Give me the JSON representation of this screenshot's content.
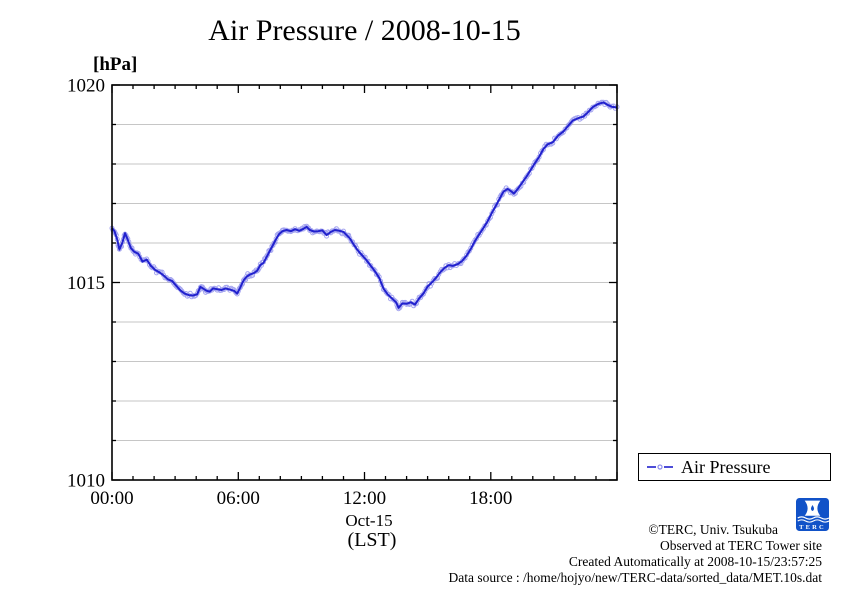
{
  "chart_data": {
    "type": "line",
    "title": "Air Pressure / 2008-10-15",
    "unit_label": "[hPa]",
    "xlabel_date": "Oct-15",
    "xlabel_tz": "(LST)",
    "grid": "horizontal",
    "grid_color": "#c6c6c6",
    "legend_position": "bottom-right-outside",
    "xaxis": {
      "min": 0,
      "max": 24,
      "minor_step_hours": 1,
      "major_step_hours": 6,
      "major_ticks": [
        {
          "hour": 0,
          "label": "00:00"
        },
        {
          "hour": 6,
          "label": "06:00"
        },
        {
          "hour": 12,
          "label": "12:00"
        },
        {
          "hour": 18,
          "label": "18:00"
        }
      ]
    },
    "yaxis": {
      "min": 1010,
      "max": 1020,
      "minor_step": 1,
      "major_ticks": [
        {
          "value": 1010,
          "label": "1010"
        },
        {
          "value": 1015,
          "label": "1015"
        },
        {
          "value": 1020,
          "label": "1020"
        }
      ],
      "grid_values": [
        1011,
        1012,
        1013,
        1014,
        1015,
        1016,
        1017,
        1018,
        1019
      ]
    },
    "series": [
      {
        "name": "Air Pressure",
        "color": "#2121cd",
        "marker_color": "#8d8dec",
        "points": [
          [
            0.0,
            1016.38
          ],
          [
            0.12,
            1016.3
          ],
          [
            0.25,
            1016.08
          ],
          [
            0.35,
            1015.83
          ],
          [
            0.5,
            1016.02
          ],
          [
            0.62,
            1016.25
          ],
          [
            0.75,
            1016.08
          ],
          [
            0.9,
            1015.87
          ],
          [
            1.05,
            1015.78
          ],
          [
            1.25,
            1015.73
          ],
          [
            1.45,
            1015.53
          ],
          [
            1.65,
            1015.58
          ],
          [
            1.85,
            1015.42
          ],
          [
            2.05,
            1015.32
          ],
          [
            2.25,
            1015.26
          ],
          [
            2.45,
            1015.18
          ],
          [
            2.65,
            1015.08
          ],
          [
            2.85,
            1015.04
          ],
          [
            3.05,
            1014.92
          ],
          [
            3.25,
            1014.8
          ],
          [
            3.45,
            1014.72
          ],
          [
            3.65,
            1014.68
          ],
          [
            3.85,
            1014.67
          ],
          [
            4.05,
            1014.7
          ],
          [
            4.2,
            1014.89
          ],
          [
            4.35,
            1014.84
          ],
          [
            4.5,
            1014.79
          ],
          [
            4.65,
            1014.77
          ],
          [
            4.8,
            1014.85
          ],
          [
            5.0,
            1014.83
          ],
          [
            5.2,
            1014.81
          ],
          [
            5.4,
            1014.85
          ],
          [
            5.6,
            1014.82
          ],
          [
            5.8,
            1014.79
          ],
          [
            5.95,
            1014.72
          ],
          [
            6.1,
            1014.88
          ],
          [
            6.25,
            1015.05
          ],
          [
            6.4,
            1015.15
          ],
          [
            6.55,
            1015.2
          ],
          [
            6.75,
            1015.24
          ],
          [
            6.9,
            1015.3
          ],
          [
            7.05,
            1015.44
          ],
          [
            7.2,
            1015.5
          ],
          [
            7.35,
            1015.65
          ],
          [
            7.5,
            1015.8
          ],
          [
            7.65,
            1015.95
          ],
          [
            7.8,
            1016.1
          ],
          [
            7.95,
            1016.23
          ],
          [
            8.1,
            1016.3
          ],
          [
            8.3,
            1016.33
          ],
          [
            8.5,
            1016.3
          ],
          [
            8.7,
            1016.35
          ],
          [
            8.9,
            1016.31
          ],
          [
            9.1,
            1016.36
          ],
          [
            9.25,
            1016.41
          ],
          [
            9.4,
            1016.33
          ],
          [
            9.6,
            1016.29
          ],
          [
            9.8,
            1016.3
          ],
          [
            10.0,
            1016.32
          ],
          [
            10.2,
            1016.2
          ],
          [
            10.4,
            1016.28
          ],
          [
            10.6,
            1016.33
          ],
          [
            10.8,
            1016.31
          ],
          [
            11.0,
            1016.28
          ],
          [
            11.15,
            1016.2
          ],
          [
            11.3,
            1016.12
          ],
          [
            11.5,
            1015.95
          ],
          [
            11.7,
            1015.8
          ],
          [
            11.9,
            1015.68
          ],
          [
            12.1,
            1015.56
          ],
          [
            12.3,
            1015.42
          ],
          [
            12.5,
            1015.28
          ],
          [
            12.7,
            1015.12
          ],
          [
            12.9,
            1014.85
          ],
          [
            13.1,
            1014.7
          ],
          [
            13.3,
            1014.6
          ],
          [
            13.5,
            1014.5
          ],
          [
            13.62,
            1014.36
          ],
          [
            13.8,
            1014.47
          ],
          [
            14.0,
            1014.46
          ],
          [
            14.2,
            1014.5
          ],
          [
            14.4,
            1014.44
          ],
          [
            14.6,
            1014.6
          ],
          [
            14.8,
            1014.72
          ],
          [
            15.0,
            1014.9
          ],
          [
            15.2,
            1015.0
          ],
          [
            15.4,
            1015.12
          ],
          [
            15.6,
            1015.26
          ],
          [
            15.8,
            1015.37
          ],
          [
            16.0,
            1015.44
          ],
          [
            16.2,
            1015.42
          ],
          [
            16.45,
            1015.47
          ],
          [
            16.65,
            1015.55
          ],
          [
            16.85,
            1015.68
          ],
          [
            17.05,
            1015.85
          ],
          [
            17.25,
            1016.05
          ],
          [
            17.45,
            1016.22
          ],
          [
            17.65,
            1016.38
          ],
          [
            17.85,
            1016.55
          ],
          [
            18.05,
            1016.76
          ],
          [
            18.25,
            1016.95
          ],
          [
            18.45,
            1017.15
          ],
          [
            18.6,
            1017.3
          ],
          [
            18.8,
            1017.37
          ],
          [
            19.0,
            1017.3
          ],
          [
            19.1,
            1017.25
          ],
          [
            19.3,
            1017.38
          ],
          [
            19.5,
            1017.53
          ],
          [
            19.7,
            1017.68
          ],
          [
            19.9,
            1017.85
          ],
          [
            20.1,
            1018.02
          ],
          [
            20.3,
            1018.18
          ],
          [
            20.5,
            1018.38
          ],
          [
            20.7,
            1018.5
          ],
          [
            20.95,
            1018.55
          ],
          [
            21.2,
            1018.72
          ],
          [
            21.45,
            1018.82
          ],
          [
            21.7,
            1018.98
          ],
          [
            21.9,
            1019.1
          ],
          [
            22.15,
            1019.16
          ],
          [
            22.4,
            1019.2
          ],
          [
            22.6,
            1019.3
          ],
          [
            22.85,
            1019.44
          ],
          [
            23.1,
            1019.52
          ],
          [
            23.35,
            1019.56
          ],
          [
            23.55,
            1019.5
          ],
          [
            23.75,
            1019.45
          ],
          [
            24.0,
            1019.43
          ]
        ]
      }
    ]
  },
  "legend": {
    "label": "Air Pressure"
  },
  "footer": {
    "copyright": "©TERC, Univ. Tsukuba",
    "observed": "Observed at TERC Tower site",
    "created": "Created Automatically at 2008-10-15/23:57:25",
    "data_source": "Data source : /home/hojyo/new/TERC-data/sorted_data/MET.10s.dat"
  },
  "logo": {
    "text": "TERC",
    "color": "#1152c8"
  }
}
